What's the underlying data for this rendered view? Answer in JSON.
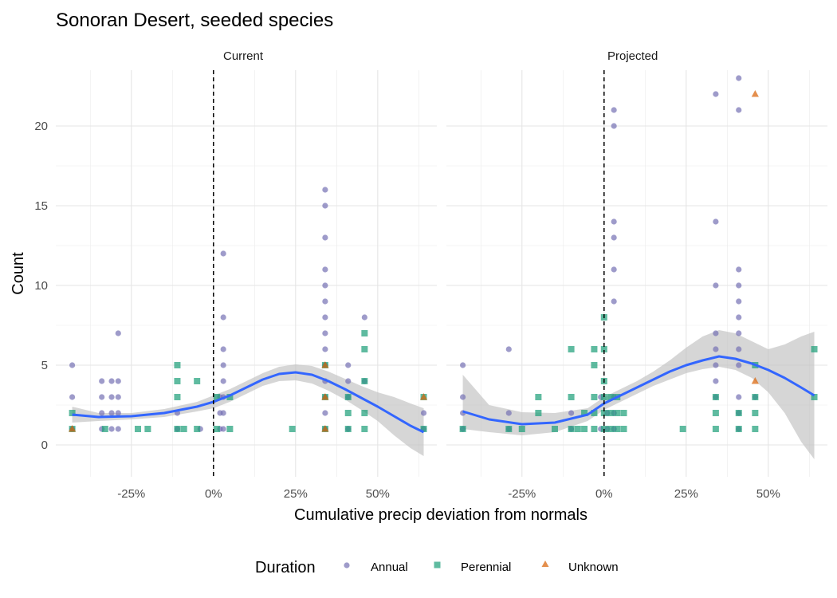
{
  "chart_data": {
    "type": "scatter",
    "title": "Sonoran Desert, seeded species",
    "xlabel": "Cumulative precip deviation from normals",
    "ylabel": "Count",
    "x_unit": "percent",
    "xlim": [
      -48,
      68
    ],
    "ylim": [
      -2,
      23.5
    ],
    "x_ticks": [
      -25,
      0,
      25,
      50
    ],
    "x_tick_labels": [
      "-25%",
      "0%",
      "25%",
      "50%"
    ],
    "y_ticks": [
      0,
      5,
      10,
      15,
      20
    ],
    "y_tick_labels": [
      "0",
      "5",
      "10",
      "15",
      "20"
    ],
    "grid": true,
    "reference_line_x": 0,
    "legend": {
      "title": "Duration",
      "position": "bottom",
      "items": [
        {
          "label": "Annual",
          "color": "#7570b3",
          "shape": "circle"
        },
        {
          "label": "Perennial",
          "color": "#1b9e77",
          "shape": "square"
        },
        {
          "label": "Unknown",
          "color": "#d95f02",
          "shape": "triangle"
        }
      ]
    },
    "smooth_color": "#3366ff",
    "ribbon_color": "#c0c0c0",
    "panels": [
      {
        "label": "Current",
        "series": [
          {
            "name": "Annual",
            "points": [
              [
                -43,
                5
              ],
              [
                -43,
                3
              ],
              [
                -43,
                1
              ],
              [
                -34,
                4
              ],
              [
                -34,
                3
              ],
              [
                -34,
                2
              ],
              [
                -34,
                1
              ],
              [
                -31,
                4
              ],
              [
                -31,
                3
              ],
              [
                -31,
                2
              ],
              [
                -31,
                1
              ],
              [
                -29,
                7
              ],
              [
                -29,
                4
              ],
              [
                -29,
                3
              ],
              [
                -29,
                2
              ],
              [
                -29,
                1
              ],
              [
                -11,
                2
              ],
              [
                -11,
                1
              ],
              [
                -4,
                1
              ],
              [
                2,
                3
              ],
              [
                2,
                2
              ],
              [
                2,
                1
              ],
              [
                3,
                12
              ],
              [
                3,
                8
              ],
              [
                3,
                6
              ],
              [
                3,
                5
              ],
              [
                3,
                4
              ],
              [
                3,
                3
              ],
              [
                3,
                2
              ],
              [
                3,
                1
              ],
              [
                34,
                16
              ],
              [
                34,
                15
              ],
              [
                34,
                13
              ],
              [
                34,
                11
              ],
              [
                34,
                10
              ],
              [
                34,
                9
              ],
              [
                34,
                8
              ],
              [
                34,
                7
              ],
              [
                34,
                6
              ],
              [
                34,
                5
              ],
              [
                34,
                4
              ],
              [
                34,
                3
              ],
              [
                34,
                2
              ],
              [
                34,
                1
              ],
              [
                41,
                5
              ],
              [
                41,
                4
              ],
              [
                41,
                3
              ],
              [
                41,
                1
              ],
              [
                46,
                8
              ],
              [
                46,
                4
              ],
              [
                64,
                2
              ],
              [
                64,
                1
              ]
            ]
          },
          {
            "name": "Perennial",
            "points": [
              [
                -43,
                2
              ],
              [
                -43,
                1
              ],
              [
                -33,
                1
              ],
              [
                -23,
                1
              ],
              [
                -20,
                1
              ],
              [
                -11,
                5
              ],
              [
                -11,
                4
              ],
              [
                -11,
                3
              ],
              [
                -11,
                1
              ],
              [
                -9,
                1
              ],
              [
                -5,
                4
              ],
              [
                -5,
                1
              ],
              [
                1,
                3
              ],
              [
                1,
                1
              ],
              [
                5,
                3
              ],
              [
                5,
                1
              ],
              [
                24,
                1
              ],
              [
                34,
                5
              ],
              [
                34,
                3
              ],
              [
                34,
                1
              ],
              [
                41,
                3
              ],
              [
                41,
                2
              ],
              [
                41,
                1
              ],
              [
                46,
                7
              ],
              [
                46,
                6
              ],
              [
                46,
                4
              ],
              [
                46,
                2
              ],
              [
                46,
                1
              ],
              [
                64,
                3
              ],
              [
                64,
                1
              ]
            ]
          },
          {
            "name": "Unknown",
            "points": [
              [
                -43,
                1
              ],
              [
                34,
                5
              ],
              [
                34,
                3
              ],
              [
                34,
                1
              ],
              [
                64,
                3
              ]
            ]
          }
        ],
        "smooth": {
          "x": [
            -43,
            -35,
            -25,
            -15,
            -5,
            0,
            5,
            10,
            15,
            20,
            25,
            30,
            35,
            40,
            45,
            50,
            55,
            60,
            64
          ],
          "y": [
            1.9,
            1.75,
            1.8,
            2.0,
            2.4,
            2.7,
            3.1,
            3.6,
            4.1,
            4.45,
            4.55,
            4.4,
            4.0,
            3.5,
            2.95,
            2.4,
            1.8,
            1.2,
            0.8
          ],
          "lower": [
            1.4,
            1.5,
            1.6,
            1.75,
            2.1,
            2.3,
            2.7,
            3.2,
            3.7,
            4.0,
            4.05,
            3.85,
            3.4,
            2.85,
            2.2,
            1.5,
            0.6,
            -0.2,
            -0.7
          ],
          "upper": [
            2.4,
            2.0,
            2.0,
            2.25,
            2.7,
            3.1,
            3.5,
            4.0,
            4.5,
            4.9,
            5.05,
            4.95,
            4.6,
            4.15,
            3.7,
            3.3,
            3.0,
            2.6,
            2.3
          ]
        }
      },
      {
        "label": "Projected",
        "series": [
          {
            "name": "Annual",
            "points": [
              [
                -43,
                5
              ],
              [
                -43,
                3
              ],
              [
                -43,
                2
              ],
              [
                -43,
                1
              ],
              [
                -29,
                6
              ],
              [
                -29,
                2
              ],
              [
                -29,
                1
              ],
              [
                -10,
                2
              ],
              [
                -10,
                1
              ],
              [
                -1,
                3
              ],
              [
                -1,
                1
              ],
              [
                1,
                2
              ],
              [
                1,
                1
              ],
              [
                3,
                21
              ],
              [
                3,
                20
              ],
              [
                3,
                14
              ],
              [
                3,
                13
              ],
              [
                3,
                11
              ],
              [
                3,
                9
              ],
              [
                3,
                3
              ],
              [
                3,
                2
              ],
              [
                3,
                1
              ],
              [
                34,
                22
              ],
              [
                34,
                14
              ],
              [
                34,
                10
              ],
              [
                34,
                7
              ],
              [
                34,
                6
              ],
              [
                34,
                5
              ],
              [
                34,
                4
              ],
              [
                34,
                3
              ],
              [
                41,
                23
              ],
              [
                41,
                21
              ],
              [
                41,
                11
              ],
              [
                41,
                10
              ],
              [
                41,
                9
              ],
              [
                41,
                8
              ],
              [
                41,
                7
              ],
              [
                41,
                6
              ],
              [
                41,
                5
              ],
              [
                41,
                3
              ],
              [
                41,
                2
              ],
              [
                41,
                1
              ],
              [
                46,
                3
              ]
            ]
          },
          {
            "name": "Perennial",
            "points": [
              [
                -43,
                1
              ],
              [
                -29,
                1
              ],
              [
                -25,
                1
              ],
              [
                -20,
                3
              ],
              [
                -20,
                2
              ],
              [
                -15,
                1
              ],
              [
                -10,
                6
              ],
              [
                -10,
                3
              ],
              [
                -10,
                1
              ],
              [
                -8,
                1
              ],
              [
                -6,
                2
              ],
              [
                -6,
                1
              ],
              [
                -3,
                6
              ],
              [
                -3,
                5
              ],
              [
                -3,
                3
              ],
              [
                -3,
                2
              ],
              [
                -3,
                1
              ],
              [
                0,
                8
              ],
              [
                0,
                6
              ],
              [
                0,
                4
              ],
              [
                0,
                3
              ],
              [
                0,
                2
              ],
              [
                0,
                1
              ],
              [
                2,
                3
              ],
              [
                2,
                2
              ],
              [
                2,
                1
              ],
              [
                4,
                3
              ],
              [
                4,
                2
              ],
              [
                4,
                1
              ],
              [
                6,
                2
              ],
              [
                6,
                1
              ],
              [
                24,
                1
              ],
              [
                34,
                3
              ],
              [
                34,
                2
              ],
              [
                34,
                1
              ],
              [
                41,
                2
              ],
              [
                41,
                1
              ],
              [
                46,
                5
              ],
              [
                46,
                3
              ],
              [
                46,
                2
              ],
              [
                46,
                1
              ],
              [
                64,
                6
              ],
              [
                64,
                3
              ]
            ]
          },
          {
            "name": "Unknown",
            "points": [
              [
                46,
                22
              ],
              [
                46,
                4
              ]
            ]
          }
        ],
        "smooth": {
          "x": [
            -43,
            -35,
            -25,
            -15,
            -5,
            0,
            5,
            10,
            15,
            20,
            25,
            30,
            35,
            40,
            45,
            50,
            55,
            60,
            64
          ],
          "y": [
            2.1,
            1.6,
            1.3,
            1.4,
            1.9,
            2.6,
            3.1,
            3.6,
            4.1,
            4.6,
            5.0,
            5.3,
            5.55,
            5.4,
            5.1,
            4.7,
            4.2,
            3.6,
            3.1
          ],
          "lower": [
            1.0,
            0.8,
            0.6,
            0.8,
            1.5,
            2.2,
            2.7,
            3.2,
            3.7,
            4.1,
            4.5,
            4.75,
            4.9,
            4.7,
            4.2,
            3.3,
            2.0,
            0.2,
            -0.9
          ],
          "upper": [
            4.4,
            2.5,
            2.05,
            2.0,
            2.3,
            3.0,
            3.5,
            4.0,
            4.6,
            5.3,
            6.1,
            6.8,
            7.2,
            7.0,
            6.5,
            6.0,
            6.3,
            6.8,
            7.1
          ]
        }
      }
    ]
  }
}
